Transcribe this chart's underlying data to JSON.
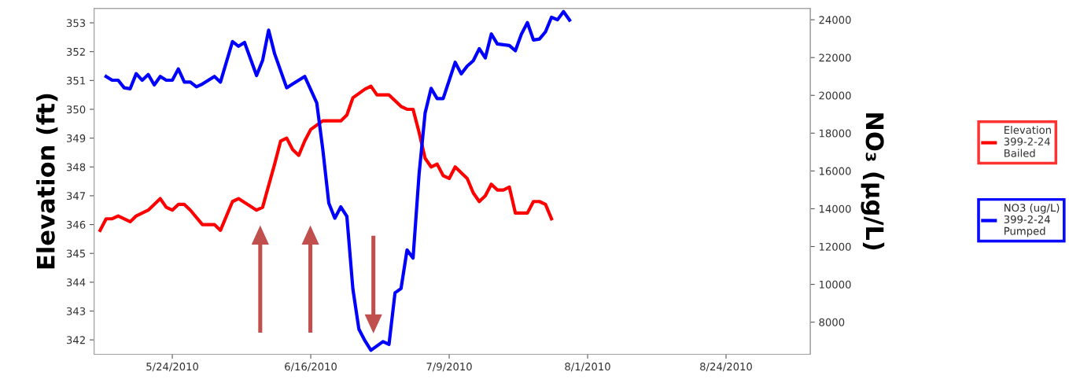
{
  "chart_data": {
    "type": "line",
    "ylabel": "Elevation (ft)",
    "y2label": "NO₃ (µg/L)",
    "xlim": [
      "2010-05-11",
      "2010-09-07"
    ],
    "xticks": [
      {
        "value": "2010-05-24",
        "label": "5/24/2010"
      },
      {
        "value": "2010-06-16",
        "label": "6/16/2010"
      },
      {
        "value": "2010-07-09",
        "label": "7/9/2010"
      },
      {
        "value": "2010-08-01",
        "label": "8/1/2010"
      },
      {
        "value": "2010-08-24",
        "label": "8/24/2010"
      }
    ],
    "ylim": [
      341.5,
      353.5
    ],
    "yticks": [
      342,
      343,
      344,
      345,
      346,
      347,
      348,
      349,
      350,
      351,
      352,
      353
    ],
    "y2lim": [
      6300,
      24600
    ],
    "y2ticks": [
      8000,
      10000,
      12000,
      14000,
      16000,
      18000,
      20000,
      22000,
      24000
    ],
    "grid": false,
    "legend": "right",
    "marker": "none",
    "line_style": "solid",
    "series": [
      {
        "name": "Elevation\n399-2-24\nBailed",
        "color": "#ff0000",
        "axis": "y",
        "x": [
          "2010-05-12",
          "2010-05-13",
          "2010-05-14",
          "2010-05-15",
          "2010-05-17",
          "2010-05-18",
          "2010-05-19",
          "2010-05-20",
          "2010-05-22",
          "2010-05-23",
          "2010-05-24",
          "2010-05-25",
          "2010-05-26",
          "2010-05-27",
          "2010-05-29",
          "2010-05-31",
          "2010-06-01",
          "2010-06-03",
          "2010-06-04",
          "2010-06-07",
          "2010-06-08",
          "2010-06-10",
          "2010-06-11",
          "2010-06-12",
          "2010-06-13",
          "2010-06-14",
          "2010-06-15",
          "2010-06-16",
          "2010-06-18",
          "2010-06-19",
          "2010-06-21",
          "2010-06-22",
          "2010-06-23",
          "2010-06-25",
          "2010-06-26",
          "2010-06-27",
          "2010-06-29",
          "2010-07-01",
          "2010-07-02",
          "2010-07-03",
          "2010-07-04",
          "2010-07-05",
          "2010-07-06",
          "2010-07-07",
          "2010-07-08",
          "2010-07-09",
          "2010-07-10",
          "2010-07-12",
          "2010-07-13",
          "2010-07-14",
          "2010-07-15",
          "2010-07-16",
          "2010-07-17",
          "2010-07-18",
          "2010-07-19",
          "2010-07-20",
          "2010-07-21",
          "2010-07-22",
          "2010-07-23",
          "2010-07-24",
          "2010-07-25",
          "2010-07-26"
        ],
        "values": [
          345.8,
          346.2,
          346.2,
          346.3,
          346.1,
          346.3,
          346.4,
          346.5,
          346.9,
          346.6,
          346.5,
          346.7,
          346.7,
          346.5,
          346.0,
          346.0,
          345.8,
          346.8,
          346.9,
          346.5,
          346.6,
          348.1,
          348.9,
          349.0,
          348.6,
          348.4,
          348.9,
          349.3,
          349.6,
          349.6,
          349.6,
          349.8,
          350.4,
          350.7,
          350.8,
          350.5,
          350.5,
          350.1,
          350.0,
          350.0,
          349.2,
          348.3,
          348.0,
          348.1,
          347.7,
          347.6,
          348.0,
          347.6,
          347.1,
          346.8,
          347.0,
          347.4,
          347.2,
          347.2,
          347.3,
          346.4,
          346.4,
          346.4,
          346.8,
          346.8,
          346.7,
          346.2
        ]
      },
      {
        "name": "NO3 (ug/L)\n399-2-24\nPumped",
        "color": "#0000ff",
        "axis": "y2",
        "x": [
          "2010-05-13",
          "2010-05-14",
          "2010-05-15",
          "2010-05-16",
          "2010-05-17",
          "2010-05-18",
          "2010-05-19",
          "2010-05-20",
          "2010-05-21",
          "2010-05-22",
          "2010-05-23",
          "2010-05-24",
          "2010-05-25",
          "2010-05-26",
          "2010-05-27",
          "2010-05-28",
          "2010-05-29",
          "2010-05-31",
          "2010-06-01",
          "2010-06-03",
          "2010-06-04",
          "2010-06-05",
          "2010-06-07",
          "2010-06-08",
          "2010-06-09",
          "2010-06-10",
          "2010-06-12",
          "2010-06-13",
          "2010-06-15",
          "2010-06-17",
          "2010-06-18",
          "2010-06-19",
          "2010-06-20",
          "2010-06-21",
          "2010-06-22",
          "2010-06-23",
          "2010-06-24",
          "2010-06-25",
          "2010-06-26",
          "2010-06-28",
          "2010-06-29",
          "2010-06-30",
          "2010-07-01",
          "2010-07-02",
          "2010-07-03",
          "2010-07-04",
          "2010-07-05",
          "2010-07-06",
          "2010-07-07",
          "2010-07-08",
          "2010-07-10",
          "2010-07-11",
          "2010-07-12",
          "2010-07-13",
          "2010-07-14",
          "2010-07-15",
          "2010-07-16",
          "2010-07-17",
          "2010-07-19",
          "2010-07-20",
          "2010-07-21",
          "2010-07-22",
          "2010-07-23",
          "2010-07-24",
          "2010-07-25",
          "2010-07-26",
          "2010-07-27",
          "2010-07-28",
          "2010-07-29"
        ],
        "values": [
          21000,
          20800,
          20800,
          20400,
          20350,
          21150,
          20800,
          21100,
          20550,
          21000,
          20800,
          20800,
          21400,
          20700,
          20700,
          20450,
          20600,
          21000,
          20700,
          22850,
          22600,
          22800,
          21050,
          21850,
          23450,
          22200,
          20400,
          20600,
          21000,
          19600,
          17150,
          14300,
          13500,
          14100,
          13600,
          9760,
          7630,
          7020,
          6510,
          6970,
          6820,
          9550,
          9780,
          11820,
          11390,
          15840,
          19060,
          20370,
          19830,
          19830,
          21750,
          21140,
          21550,
          21830,
          22470,
          21980,
          23250,
          22720,
          22640,
          22360,
          23240,
          23850,
          22930,
          22980,
          23360,
          24130,
          24000,
          24430,
          23980
        ]
      }
    ]
  }
}
